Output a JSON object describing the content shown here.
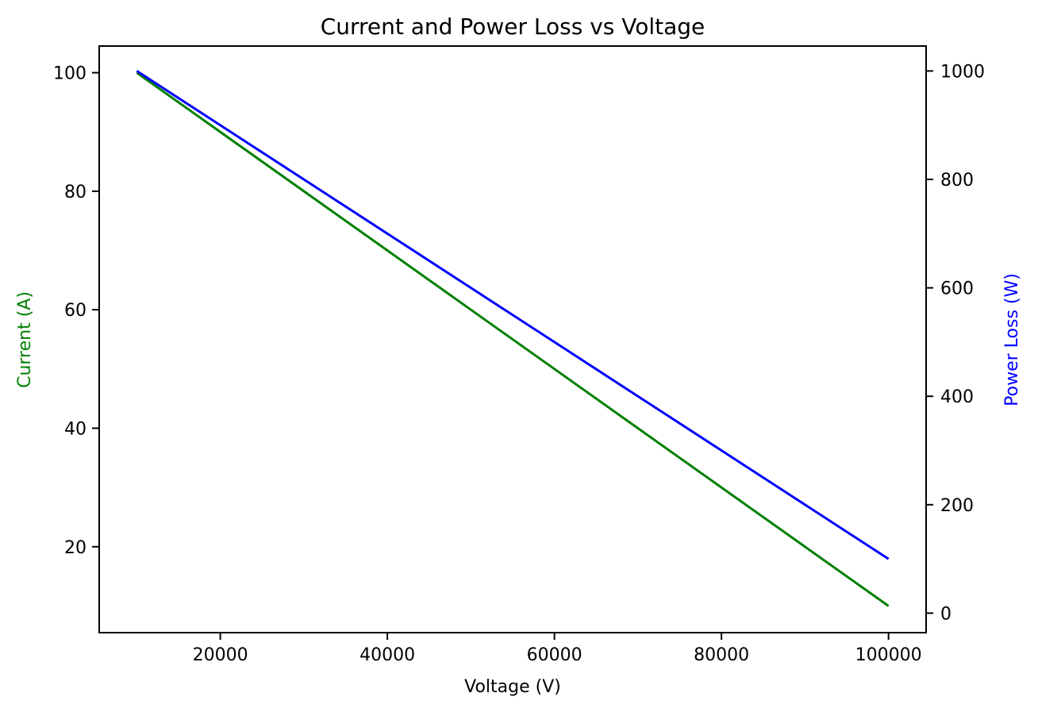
{
  "chart_data": {
    "type": "line",
    "title": "Current and Power Loss vs Voltage",
    "xlabel": "Voltage (V)",
    "ylabel_left": "Current (A)",
    "ylabel_right": "Power Loss (W)",
    "xlim": [
      5500,
      104500
    ],
    "ylim_left": [
      5.5,
      104.5
    ],
    "ylim_right": [
      -36.0,
      1046.0
    ],
    "x_ticks": [
      20000,
      40000,
      60000,
      80000,
      100000
    ],
    "x_tick_labels": [
      "20000",
      "40000",
      "60000",
      "80000",
      "100000"
    ],
    "y_left_ticks": [
      20,
      40,
      60,
      80,
      100
    ],
    "y_left_tick_labels": [
      "20",
      "40",
      "60",
      "80",
      "100"
    ],
    "y_right_ticks": [
      0,
      200,
      400,
      600,
      800,
      1000
    ],
    "y_right_tick_labels": [
      "0",
      "200",
      "400",
      "600",
      "800",
      "1000"
    ],
    "grid": false,
    "colors": {
      "current": "#008000",
      "power_loss": "#0000ff",
      "axes": "#000000"
    },
    "series": [
      {
        "axis": "left",
        "color": "#008000",
        "x": [
          10000,
          20000,
          30000,
          40000,
          50000,
          60000,
          70000,
          80000,
          90000,
          100000
        ],
        "y": [
          100,
          90,
          80,
          70,
          60,
          50,
          40,
          30,
          20,
          10
        ]
      },
      {
        "axis": "right",
        "color": "#0000ff",
        "x": [
          10000,
          20000,
          30000,
          40000,
          50000,
          60000,
          70000,
          80000,
          90000,
          100000
        ],
        "y": [
          1000,
          900,
          800,
          700,
          600,
          500,
          400,
          300,
          200,
          100
        ]
      }
    ]
  }
}
